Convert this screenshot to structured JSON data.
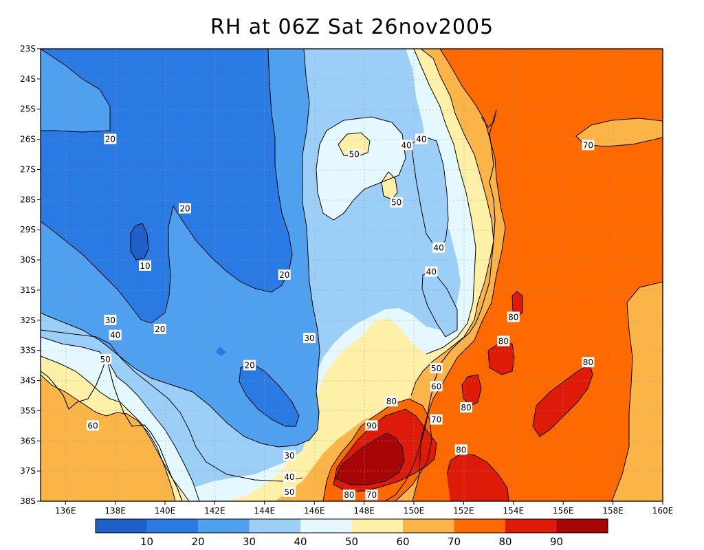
{
  "title": "RH at 06Z Sat 26nov2005",
  "lat_ticks": [
    "23S",
    "24S",
    "25S",
    "26S",
    "27S",
    "28S",
    "29S",
    "30S",
    "31S",
    "32S",
    "33S",
    "34S",
    "35S",
    "36S",
    "37S",
    "38S"
  ],
  "lon_ticks": [
    "136E",
    "138E",
    "140E",
    "142E",
    "144E",
    "146E",
    "148E",
    "150E",
    "152E",
    "154E",
    "156E",
    "158E",
    "160E"
  ],
  "colors": {
    "c10": "#1f5fc9",
    "c20": "#2a7ae4",
    "c30": "#4fa0ef",
    "c40": "#9ccff8",
    "c50": "#e6f8ff",
    "c60": "#fff0a8",
    "c70": "#fbb446",
    "c80": "#ff6a00",
    "c90": "#de1a09",
    "c100": "#a80606"
  },
  "colorbar": {
    "labels": [
      "10",
      "20",
      "30",
      "40",
      "50",
      "60",
      "70",
      "80",
      "90"
    ],
    "colors": [
      "#1f5fc9",
      "#2a7ae4",
      "#4fa0ef",
      "#9ccff8",
      "#e6f8ff",
      "#fff0a8",
      "#fbb446",
      "#ff6a00",
      "#de1a09",
      "#a80606"
    ]
  },
  "contour_labels": [
    {
      "text": "20",
      "lon": 137.8,
      "lat": -26.0
    },
    {
      "text": "20",
      "lon": 140.8,
      "lat": -28.3
    },
    {
      "text": "10",
      "lon": 139.2,
      "lat": -30.2
    },
    {
      "text": "20",
      "lon": 144.8,
      "lat": -30.5
    },
    {
      "text": "30",
      "lon": 137.8,
      "lat": -32.0
    },
    {
      "text": "20",
      "lon": 139.8,
      "lat": -32.3
    },
    {
      "text": "40",
      "lon": 138.0,
      "lat": -32.5
    },
    {
      "text": "30",
      "lon": 145.8,
      "lat": -32.6
    },
    {
      "text": "50",
      "lon": 137.6,
      "lat": -33.3
    },
    {
      "text": "20",
      "lon": 143.4,
      "lat": -33.5
    },
    {
      "text": "60",
      "lon": 137.1,
      "lat": -35.5
    },
    {
      "text": "50",
      "lon": 147.6,
      "lat": -26.5
    },
    {
      "text": "40",
      "lon": 149.7,
      "lat": -26.2
    },
    {
      "text": "40",
      "lon": 150.3,
      "lat": -26.0
    },
    {
      "text": "50",
      "lon": 149.3,
      "lat": -28.1
    },
    {
      "text": "40",
      "lon": 151.0,
      "lat": -29.6
    },
    {
      "text": "40",
      "lon": 150.7,
      "lat": -30.4
    },
    {
      "text": "70",
      "lon": 157.0,
      "lat": -26.2
    },
    {
      "text": "80",
      "lon": 154.0,
      "lat": -31.9
    },
    {
      "text": "80",
      "lon": 153.6,
      "lat": -32.7
    },
    {
      "text": "50",
      "lon": 150.9,
      "lat": -33.6
    },
    {
      "text": "80",
      "lon": 157.0,
      "lat": -33.4
    },
    {
      "text": "60",
      "lon": 150.9,
      "lat": -34.2
    },
    {
      "text": "80",
      "lon": 149.1,
      "lat": -34.7
    },
    {
      "text": "80",
      "lon": 152.1,
      "lat": -34.9
    },
    {
      "text": "70",
      "lon": 150.9,
      "lat": -35.3
    },
    {
      "text": "90",
      "lon": 148.3,
      "lat": -35.5
    },
    {
      "text": "80",
      "lon": 151.9,
      "lat": -36.3
    },
    {
      "text": "30",
      "lon": 145.0,
      "lat": -36.5
    },
    {
      "text": "40",
      "lon": 145.0,
      "lat": -37.2
    },
    {
      "text": "50",
      "lon": 145.0,
      "lat": -37.7
    },
    {
      "text": "80",
      "lon": 147.4,
      "lat": -37.8
    },
    {
      "text": "70",
      "lon": 148.3,
      "lat": -37.8
    }
  ]
}
